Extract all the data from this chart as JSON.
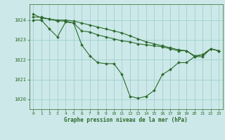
{
  "title": "Graphe pression niveau de la mer (hPa)",
  "bg_color": "#cce8e8",
  "grid_color": "#99cccc",
  "line_color": "#2d6a2d",
  "marker_color": "#2d6a2d",
  "xlim": [
    -0.5,
    23.5
  ],
  "ylim": [
    1019.5,
    1024.8
  ],
  "yticks": [
    1020,
    1021,
    1022,
    1023,
    1024
  ],
  "xticks": [
    0,
    1,
    2,
    3,
    4,
    5,
    6,
    7,
    8,
    9,
    10,
    11,
    12,
    13,
    14,
    15,
    16,
    17,
    18,
    19,
    20,
    21,
    22,
    23
  ],
  "series": [
    {
      "x": [
        0,
        1,
        2,
        3,
        4,
        5,
        6,
        7,
        8,
        9,
        10,
        11,
        12,
        13,
        14,
        15,
        16,
        17,
        18,
        19,
        20,
        21,
        22,
        23
      ],
      "y": [
        1024.0,
        1024.0,
        1023.55,
        1023.15,
        1023.9,
        1023.85,
        1022.75,
        1022.2,
        1021.85,
        1021.8,
        1021.8,
        1021.25,
        1020.15,
        1020.05,
        1020.15,
        1020.45,
        1021.25,
        1021.5,
        1021.85,
        1021.85,
        1022.15,
        1022.15,
        1022.55,
        1022.45
      ]
    },
    {
      "x": [
        0,
        1,
        2,
        3,
        4,
        5,
        6,
        7,
        8,
        9,
        10,
        11,
        12,
        13,
        14,
        15,
        16,
        17,
        18,
        19,
        20,
        21,
        22,
        23
      ],
      "y": [
        1024.15,
        1024.15,
        1024.05,
        1023.95,
        1023.95,
        1023.85,
        1023.45,
        1023.4,
        1023.25,
        1023.15,
        1023.05,
        1022.95,
        1022.9,
        1022.8,
        1022.75,
        1022.7,
        1022.65,
        1022.55,
        1022.45,
        1022.45,
        1022.15,
        1022.25,
        1022.55,
        1022.45
      ]
    },
    {
      "x": [
        0,
        1,
        2,
        3,
        4,
        5,
        6,
        7,
        8,
        9,
        10,
        11,
        12,
        13,
        14,
        15,
        16,
        17,
        18,
        19,
        20,
        21,
        22,
        23
      ],
      "y": [
        1024.3,
        1024.1,
        1024.05,
        1024.0,
        1024.0,
        1023.95,
        1023.85,
        1023.75,
        1023.65,
        1023.55,
        1023.45,
        1023.35,
        1023.2,
        1023.05,
        1022.9,
        1022.8,
        1022.7,
        1022.6,
        1022.5,
        1022.45,
        1022.2,
        1022.25,
        1022.55,
        1022.45
      ]
    }
  ]
}
